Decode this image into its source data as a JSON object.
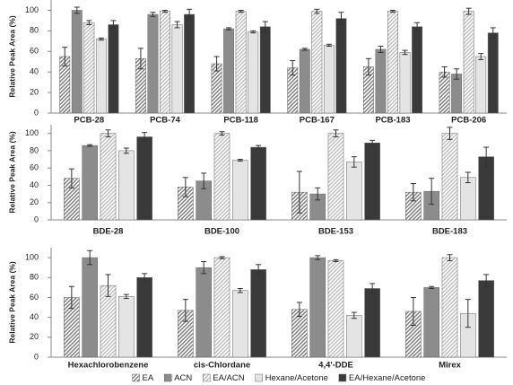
{
  "chart_data": [
    {
      "type": "bar",
      "ylabel": "Relative Peak Area (%)",
      "categories": [
        "PCB-28",
        "PCB-74",
        "PCB-118",
        "PCB-167",
        "PCB-183",
        "PCB-206"
      ],
      "ylim": [
        0,
        110
      ],
      "yticks": [
        0,
        20,
        40,
        60,
        80,
        100
      ],
      "series": [
        {
          "color": "#7a7a7a",
          "pattern": "hatch",
          "values": [
            55,
            53,
            48,
            44,
            45,
            40
          ],
          "errors": [
            9,
            10,
            7,
            7,
            8,
            5
          ]
        },
        {
          "color": "#8c8c8c",
          "values": [
            100,
            96,
            82,
            62,
            62,
            38
          ],
          "errors": [
            3,
            2,
            1,
            1,
            3,
            5
          ]
        },
        {
          "color": "#bdbdbd",
          "pattern": "hatch",
          "values": [
            88,
            99,
            99,
            99,
            99,
            99
          ],
          "errors": [
            2,
            1,
            1,
            2,
            1,
            3
          ]
        },
        {
          "color": "#e4e4e4",
          "values": [
            72,
            86,
            79,
            66,
            59,
            55
          ],
          "errors": [
            1,
            3,
            1,
            1,
            2,
            3
          ]
        },
        {
          "color": "#3a3a3a",
          "values": [
            86,
            96,
            84,
            92,
            84,
            78
          ],
          "errors": [
            4,
            5,
            5,
            6,
            4,
            5
          ]
        }
      ]
    },
    {
      "type": "bar",
      "ylabel": "Relative Peak Area (%)",
      "categories": [
        "BDE-28",
        "BDE-100",
        "BDE-153",
        "BDE-183"
      ],
      "ylim": [
        0,
        110
      ],
      "yticks": [
        0,
        20,
        40,
        60,
        80,
        100
      ],
      "series": [
        {
          "color": "#7a7a7a",
          "pattern": "hatch",
          "values": [
            48,
            38,
            32,
            32
          ],
          "errors": [
            11,
            11,
            24,
            10
          ]
        },
        {
          "color": "#8c8c8c",
          "values": [
            86,
            45,
            30,
            33
          ],
          "errors": [
            1,
            9,
            7,
            15
          ]
        },
        {
          "color": "#bdbdbd",
          "pattern": "hatch",
          "values": [
            100,
            100,
            100,
            100
          ],
          "errors": [
            4,
            2,
            4,
            7
          ]
        },
        {
          "color": "#e4e4e4",
          "values": [
            80,
            69,
            67,
            49
          ],
          "errors": [
            3,
            1,
            6,
            6
          ]
        },
        {
          "color": "#3a3a3a",
          "values": [
            96,
            84,
            89,
            73
          ],
          "errors": [
            5,
            2,
            3,
            11
          ]
        }
      ]
    },
    {
      "type": "bar",
      "ylabel": "Relative Peak Area (%)",
      "categories": [
        "Hexachlorobenzene",
        "cis-Chlordane",
        "4,4'-DDE",
        "Mirex"
      ],
      "ylim": [
        0,
        110
      ],
      "yticks": [
        0,
        20,
        40,
        60,
        80,
        100
      ],
      "series": [
        {
          "name": "EA",
          "color": "#7a7a7a",
          "pattern": "hatch",
          "values": [
            60,
            47,
            48,
            46
          ],
          "errors": [
            11,
            11,
            7,
            14
          ]
        },
        {
          "name": "ACN",
          "color": "#8c8c8c",
          "values": [
            100,
            90,
            100,
            70
          ],
          "errors": [
            7,
            6,
            2,
            1
          ]
        },
        {
          "name": "EA/ACN",
          "color": "#bdbdbd",
          "pattern": "hatch",
          "values": [
            72,
            100,
            97,
            100
          ],
          "errors": [
            11,
            1,
            1,
            3
          ]
        },
        {
          "name": "Hexane/Acetone",
          "color": "#e4e4e4",
          "values": [
            61,
            67,
            42,
            44
          ],
          "errors": [
            2,
            2,
            3,
            14
          ]
        },
        {
          "name": "EA/Hexane/Acetone",
          "color": "#3a3a3a",
          "values": [
            80,
            88,
            69,
            77
          ],
          "errors": [
            4,
            5,
            5,
            6
          ]
        }
      ]
    }
  ]
}
